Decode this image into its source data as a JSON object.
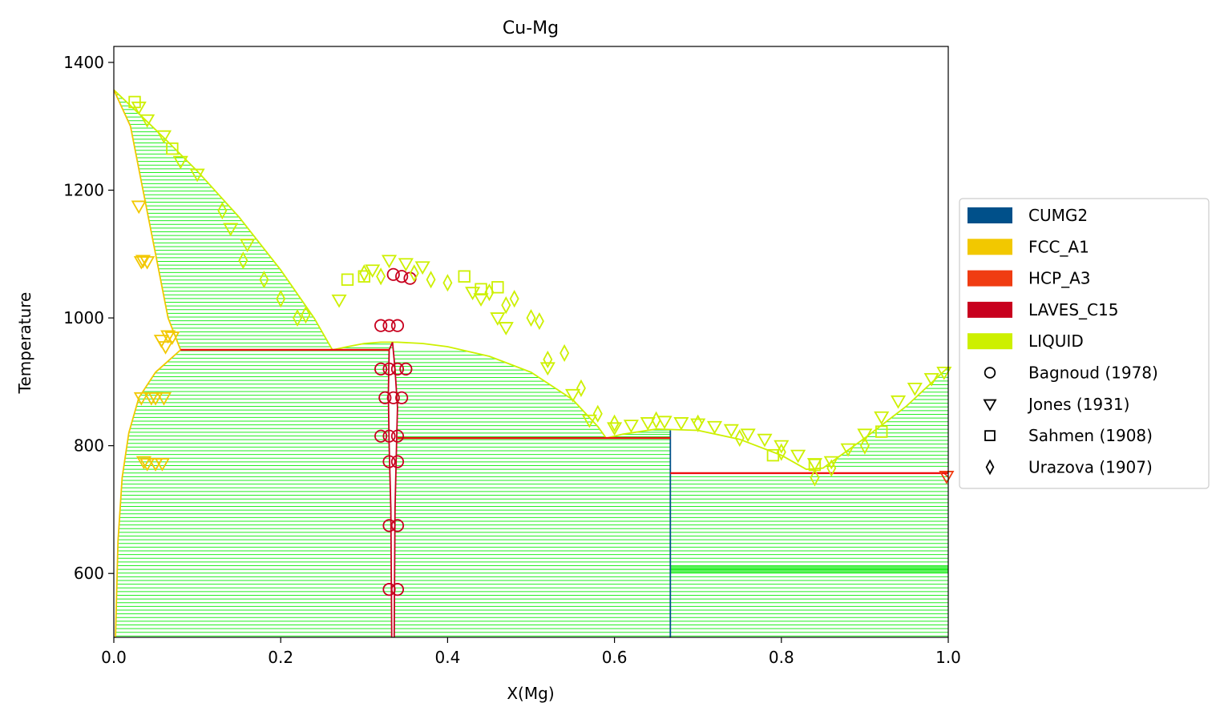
{
  "chart_data": {
    "type": "scatter",
    "title": "Cu-Mg",
    "xlabel": "X(Mg)",
    "ylabel": "Temperature",
    "xlim": [
      0.0,
      1.0
    ],
    "ylim": [
      500,
      1425
    ],
    "xticks": [
      "0.0",
      "0.2",
      "0.4",
      "0.6",
      "0.8",
      "1.0"
    ],
    "yticks": [
      "600",
      "800",
      "1000",
      "1200",
      "1400"
    ],
    "grid": false,
    "legend_position": "center-right-outside",
    "colors": {
      "tieline": "#22ee22",
      "CUMG2": "#00508a",
      "FCC_A1": "#f2c800",
      "HCP_A3": "#f03c12",
      "LAVES_C15": "#c8001e",
      "LIQUID": "#cdf000",
      "invariant": "#ee1111"
    },
    "phases": [
      {
        "name": "CUMG2",
        "color": "#00508a"
      },
      {
        "name": "FCC_A1",
        "color": "#f2c800"
      },
      {
        "name": "HCP_A3",
        "color": "#f03c12"
      },
      {
        "name": "LAVES_C15",
        "color": "#c8001e"
      },
      {
        "name": "LIQUID",
        "color": "#cdf000"
      }
    ],
    "datasets": [
      {
        "name": "Bagnoud (1978)",
        "marker": "circle"
      },
      {
        "name": "Jones (1931)",
        "marker": "triangle-down"
      },
      {
        "name": "Sahmen (1908)",
        "marker": "square"
      },
      {
        "name": "Urazova (1907)",
        "marker": "diamond"
      }
    ],
    "boundaries": [
      {
        "phase": "LIQUID",
        "points": [
          [
            0.0,
            1357
          ],
          [
            0.03,
            1320
          ],
          [
            0.06,
            1282
          ],
          [
            0.1,
            1230
          ],
          [
            0.15,
            1158
          ],
          [
            0.2,
            1075
          ],
          [
            0.24,
            1000
          ],
          [
            0.262,
            950
          ],
          [
            0.28,
            955
          ],
          [
            0.3,
            960
          ],
          [
            0.32,
            962
          ],
          [
            0.34,
            962
          ],
          [
            0.37,
            960
          ],
          [
            0.4,
            955
          ],
          [
            0.45,
            940
          ],
          [
            0.5,
            915
          ],
          [
            0.55,
            872
          ],
          [
            0.58,
            830
          ],
          [
            0.59,
            812
          ],
          [
            0.61,
            818
          ],
          [
            0.65,
            826
          ],
          [
            0.7,
            824
          ],
          [
            0.75,
            810
          ],
          [
            0.8,
            785
          ],
          [
            0.83,
            763
          ],
          [
            0.85,
            765
          ],
          [
            0.9,
            812
          ],
          [
            0.95,
            862
          ],
          [
            1.0,
            923
          ]
        ]
      },
      {
        "phase": "FCC_A1",
        "points": [
          [
            0.0,
            1357
          ],
          [
            0.02,
            1300
          ],
          [
            0.035,
            1200
          ],
          [
            0.05,
            1100
          ],
          [
            0.065,
            1000
          ],
          [
            0.08,
            950
          ]
        ]
      },
      {
        "phase": "FCC_A1",
        "points": [
          [
            0.08,
            950
          ],
          [
            0.05,
            915
          ],
          [
            0.03,
            875
          ],
          [
            0.018,
            820
          ],
          [
            0.01,
            750
          ],
          [
            0.005,
            650
          ],
          [
            0.002,
            500
          ]
        ]
      },
      {
        "phase": "LAVES_C15",
        "points": [
          [
            0.333,
            500
          ],
          [
            0.332,
            700
          ],
          [
            0.33,
            800
          ],
          [
            0.329,
            880
          ],
          [
            0.33,
            950
          ],
          [
            0.334,
            962
          ]
        ]
      },
      {
        "phase": "LAVES_C15",
        "points": [
          [
            0.334,
            962
          ],
          [
            0.337,
            920
          ],
          [
            0.34,
            860
          ],
          [
            0.339,
            812
          ],
          [
            0.337,
            700
          ],
          [
            0.336,
            500
          ]
        ]
      },
      {
        "phase": "CUMG2",
        "points": [
          [
            0.667,
            500
          ],
          [
            0.667,
            824
          ]
        ]
      },
      {
        "phase": "HCP_A3",
        "points": [
          [
            0.995,
            757
          ],
          [
            1.0,
            751
          ]
        ]
      }
    ],
    "invariants": [
      {
        "x": [
          0.08,
          0.33
        ],
        "y": 950
      },
      {
        "x": [
          0.34,
          0.667
        ],
        "y": 812
      },
      {
        "x": [
          0.667,
          1.0
        ],
        "y": 757
      }
    ],
    "tieline_regions": [
      {
        "x_left": "fcc_solvus",
        "x_right": "laves_left",
        "y_min": 500,
        "y_max": 950
      },
      {
        "x_left": "laves_right",
        "x_right": 0.667,
        "y_min": 500,
        "y_max": 812
      },
      {
        "x_left": 0.667,
        "x_right": 1.0,
        "y_min": 500,
        "y_max": 757
      },
      {
        "x_left": "fcc_liquidus_upper",
        "x_right": "liquid_left",
        "y_min": 950,
        "y_max": 1357
      },
      {
        "x_left": "liquid_dome",
        "x_right": 0.667,
        "y_min": 812,
        "y_max": 826
      },
      {
        "x_left": "liquid_right",
        "x_right": 1.0,
        "y_min": 757,
        "y_max": 923
      }
    ],
    "series": [
      {
        "name": "Bagnoud (1978)",
        "marker": "circle",
        "color": "#c8001e",
        "x": [
          0.32,
          0.33,
          0.34,
          0.32,
          0.33,
          0.34,
          0.35,
          0.325,
          0.335,
          0.345,
          0.32,
          0.33,
          0.34,
          0.33,
          0.34,
          0.33,
          0.34,
          0.33,
          0.34,
          0.335,
          0.345,
          0.355
        ],
        "y": [
          988,
          988,
          988,
          920,
          920,
          920,
          920,
          875,
          875,
          875,
          815,
          815,
          815,
          775,
          775,
          675,
          675,
          575,
          575,
          1068,
          1065,
          1062
        ]
      },
      {
        "name": "Jones (1931)",
        "marker": "triangle-down",
        "color": "#cdf000",
        "x": [
          0.03,
          0.04,
          0.06,
          0.08,
          0.1,
          0.14,
          0.16,
          0.27,
          0.31,
          0.33,
          0.35,
          0.37,
          0.43,
          0.44,
          0.46,
          0.47,
          0.52,
          0.55,
          0.57,
          0.6,
          0.62,
          0.64,
          0.66,
          0.68,
          0.7,
          0.72,
          0.74,
          0.76,
          0.78,
          0.8,
          0.82,
          0.84,
          0.86,
          0.88,
          0.9,
          0.92,
          0.94,
          0.96,
          0.98,
          0.995
        ],
        "y": [
          1330,
          1310,
          1285,
          1245,
          1225,
          1140,
          1115,
          1028,
          1075,
          1090,
          1085,
          1080,
          1040,
          1030,
          1000,
          985,
          922,
          880,
          840,
          828,
          832,
          836,
          838,
          836,
          834,
          830,
          825,
          818,
          810,
          800,
          785,
          772,
          775,
          795,
          818,
          845,
          870,
          890,
          905,
          915
        ]
      },
      {
        "name": "Jones (1931)",
        "marker": "triangle-down",
        "color": "#f2c800",
        "x": [
          0.03,
          0.035,
          0.033,
          0.04,
          0.045,
          0.05,
          0.06,
          0.065,
          0.07,
          0.033,
          0.04,
          0.05,
          0.058,
          0.036,
          0.05,
          0.057,
          0.062
        ],
        "y": [
          1175,
          1090,
          1088,
          1088,
          875,
          875,
          875,
          972,
          970,
          875,
          772,
          772,
          772,
          775,
          772,
          965,
          955
        ]
      },
      {
        "name": "Jones (1931)",
        "marker": "triangle-down",
        "color": "#f03c12",
        "x": [
          0.998
        ],
        "y": [
          752
        ]
      },
      {
        "name": "Sahmen (1908)",
        "marker": "square",
        "color": "#cdf000",
        "x": [
          0.025,
          0.07,
          0.28,
          0.3,
          0.42,
          0.44,
          0.46,
          0.79,
          0.92,
          0.84
        ],
        "y": [
          1338,
          1265,
          1060,
          1065,
          1065,
          1045,
          1048,
          785,
          822,
          770
        ]
      },
      {
        "name": "Urazova (1907)",
        "marker": "diamond",
        "color": "#cdf000",
        "x": [
          0.13,
          0.155,
          0.18,
          0.2,
          0.22,
          0.23,
          0.3,
          0.32,
          0.36,
          0.38,
          0.4,
          0.45,
          0.47,
          0.48,
          0.5,
          0.51,
          0.52,
          0.54,
          0.56,
          0.58,
          0.6,
          0.65,
          0.7,
          0.75,
          0.8,
          0.84,
          0.86,
          0.9
        ],
        "y": [
          1168,
          1090,
          1060,
          1030,
          1000,
          1005,
          1070,
          1065,
          1070,
          1060,
          1055,
          1040,
          1020,
          1030,
          1000,
          995,
          935,
          945,
          890,
          850,
          835,
          840,
          835,
          812,
          790,
          750,
          765,
          800
        ]
      }
    ]
  }
}
